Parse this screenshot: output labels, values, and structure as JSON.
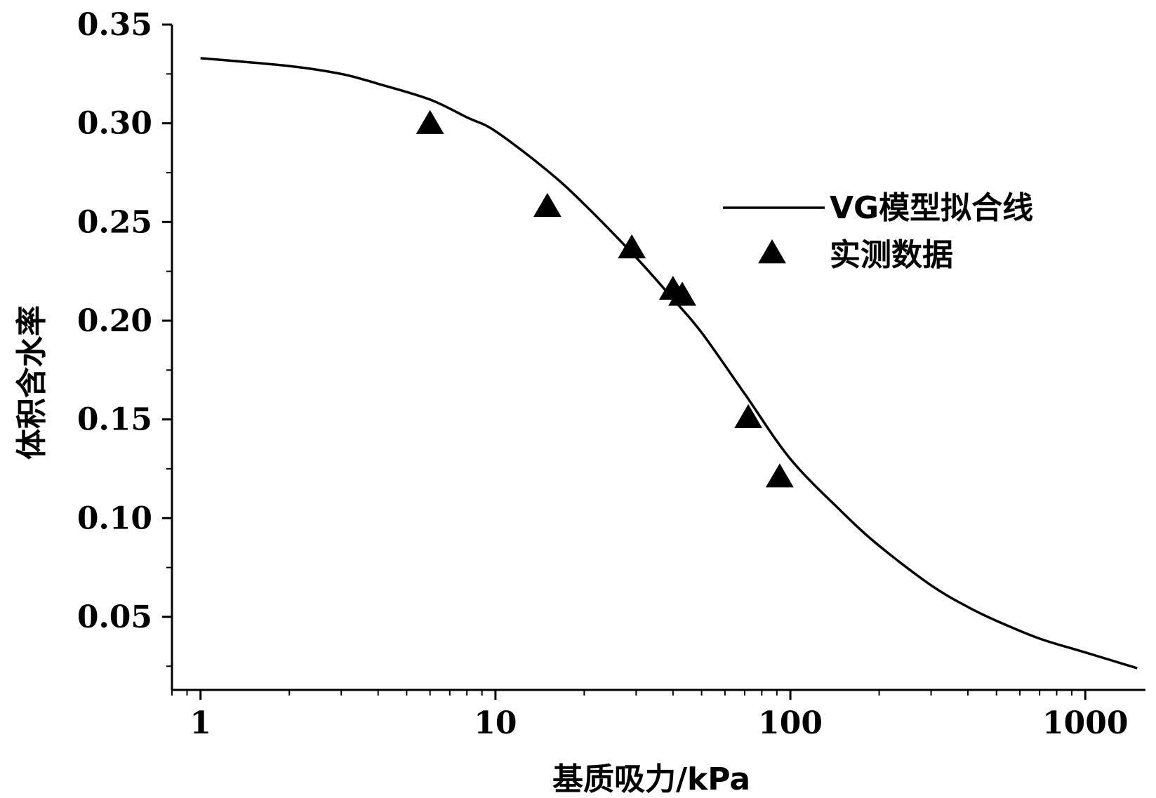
{
  "chart_data": {
    "type": "scatter",
    "xlabel": "基质吸力/kPa",
    "ylabel": "体积含水率",
    "x_scale": "log",
    "xlim": [
      0.8,
      1600
    ],
    "ylim": [
      0.013,
      0.35
    ],
    "x_ticks": [
      {
        "value": 1,
        "label": "1"
      },
      {
        "value": 10,
        "label": "10"
      },
      {
        "value": 100,
        "label": "100"
      },
      {
        "value": 1000,
        "label": "1000"
      }
    ],
    "y_ticks": [
      {
        "value": 0.05,
        "label": "0.05"
      },
      {
        "value": 0.1,
        "label": "0.10"
      },
      {
        "value": 0.15,
        "label": "0.15"
      },
      {
        "value": 0.2,
        "label": "0.20"
      },
      {
        "value": 0.25,
        "label": "0.25"
      },
      {
        "value": 0.3,
        "label": "0.30"
      },
      {
        "value": 0.35,
        "label": "0.35"
      }
    ],
    "grid": false,
    "legend_position": "right",
    "series": [
      {
        "name": "VG模型拟合线",
        "kind": "line",
        "color": "#000000",
        "points": [
          {
            "x": 1,
            "y": 0.333
          },
          {
            "x": 2,
            "y": 0.329
          },
          {
            "x": 3,
            "y": 0.325
          },
          {
            "x": 4,
            "y": 0.32
          },
          {
            "x": 6,
            "y": 0.312
          },
          {
            "x": 8,
            "y": 0.303
          },
          {
            "x": 10,
            "y": 0.296
          },
          {
            "x": 15,
            "y": 0.276
          },
          {
            "x": 20,
            "y": 0.259
          },
          {
            "x": 30,
            "y": 0.232
          },
          {
            "x": 40,
            "y": 0.211
          },
          {
            "x": 50,
            "y": 0.194
          },
          {
            "x": 70,
            "y": 0.163
          },
          {
            "x": 100,
            "y": 0.13
          },
          {
            "x": 150,
            "y": 0.103
          },
          {
            "x": 200,
            "y": 0.086
          },
          {
            "x": 300,
            "y": 0.066
          },
          {
            "x": 400,
            "y": 0.055
          },
          {
            "x": 500,
            "y": 0.048
          },
          {
            "x": 700,
            "y": 0.039
          },
          {
            "x": 1000,
            "y": 0.032
          },
          {
            "x": 1500,
            "y": 0.024
          }
        ]
      },
      {
        "name": "实测数据",
        "kind": "scatter",
        "marker": "triangle",
        "color": "#000000",
        "points": [
          {
            "x": 6,
            "y": 0.3
          },
          {
            "x": 15,
            "y": 0.258
          },
          {
            "x": 29,
            "y": 0.237
          },
          {
            "x": 40,
            "y": 0.216
          },
          {
            "x": 43,
            "y": 0.213
          },
          {
            "x": 72,
            "y": 0.151
          },
          {
            "x": 92,
            "y": 0.121
          }
        ]
      }
    ]
  }
}
